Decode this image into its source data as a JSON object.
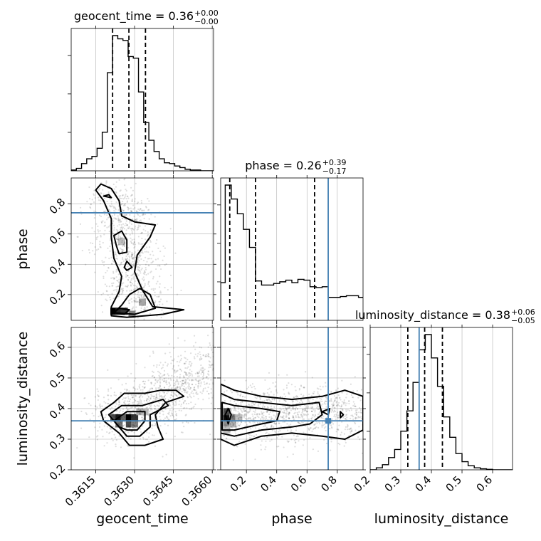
{
  "chart_data": {
    "type": "corner",
    "parameters": [
      "geocent_time",
      "phase",
      "luminosity_distance"
    ],
    "truths": {
      "geocent_time": null,
      "phase": 0.74,
      "luminosity_distance": 0.36
    },
    "truth_color": "#4682b4",
    "grid": true,
    "x_ticks": {
      "geocent_time": {
        "values": [
          0.3615,
          0.363,
          0.3645,
          0.366
        ],
        "labels": [
          "0.3615",
          "0.3630",
          "0.3645",
          "0.3660"
        ]
      },
      "phase": {
        "values": [
          0.2,
          0.4,
          0.6,
          0.8
        ],
        "labels": [
          "0.2",
          "0.4",
          "0.6",
          "0.8"
        ]
      },
      "luminosity_distance": {
        "values": [
          0.2,
          0.3,
          0.4,
          0.5,
          0.6
        ],
        "labels": [
          "0.2",
          "0.3",
          "0.4",
          "0.5",
          "0.6"
        ]
      }
    },
    "y_ticks": {
      "phase": {
        "values": [
          0.2,
          0.4,
          0.6,
          0.8
        ],
        "labels": [
          "0.2",
          "0.4",
          "0.6",
          "0.8"
        ]
      },
      "luminosity_distance": {
        "values": [
          0.2,
          0.3,
          0.4,
          0.5,
          0.6
        ],
        "labels": [
          "0.2",
          "0.3",
          "0.4",
          "0.5",
          "0.6"
        ]
      }
    },
    "ranges": {
      "geocent_time": [
        0.36055,
        0.36605
      ],
      "phase": [
        0.03,
        0.97
      ],
      "luminosity_distance": [
        0.2,
        0.665
      ]
    },
    "titles": [
      {
        "param": "geocent_time",
        "label": "geocent_time = 0.36",
        "sup": "+0.00",
        "sub": "−0.00"
      },
      {
        "param": "phase",
        "label": "phase = 0.26",
        "sup": "+0.39",
        "sub": "−0.17"
      },
      {
        "param": "luminosity_distance",
        "label": "luminosity_distance = 0.38",
        "sup": "+0.06",
        "sub": "−0.05"
      }
    ],
    "quantiles": {
      "geocent_time": [
        0.36215,
        0.36278,
        0.36342
      ],
      "phase": [
        0.09,
        0.26,
        0.65
      ],
      "luminosity_distance": [
        0.323,
        0.378,
        0.436
      ]
    },
    "histograms": {
      "geocent_time": {
        "bin_edges": [
          0.36055,
          0.36075,
          0.36095,
          0.36115,
          0.36135,
          0.36155,
          0.36175,
          0.36195,
          0.36215,
          0.36235,
          0.36255,
          0.36275,
          0.36295,
          0.36315,
          0.36335,
          0.36355,
          0.36375,
          0.36395,
          0.36415,
          0.36435,
          0.36455,
          0.36475,
          0.36495,
          0.36515,
          0.36535,
          0.36555,
          0.36575,
          0.36605
        ],
        "counts": [
          1,
          3,
          9,
          15,
          18,
          28,
          48,
          122,
          168,
          164,
          162,
          142,
          140,
          98,
          60,
          38,
          24,
          15,
          10,
          9,
          6,
          4,
          2,
          1,
          1,
          0,
          0
        ]
      },
      "phase": {
        "bin_edges": [
          0.03,
          0.06,
          0.1,
          0.14,
          0.18,
          0.22,
          0.26,
          0.3,
          0.34,
          0.38,
          0.42,
          0.46,
          0.5,
          0.54,
          0.58,
          0.62,
          0.66,
          0.7,
          0.74,
          0.78,
          0.82,
          0.86,
          0.9,
          0.94,
          0.97
        ],
        "counts": [
          46,
          165,
          148,
          130,
          111,
          89,
          48,
          43,
          43,
          45,
          47,
          49,
          46,
          50,
          49,
          41,
          40,
          41,
          28,
          28,
          29,
          30,
          30,
          28
        ]
      },
      "luminosity_distance": {
        "bin_edges": [
          0.2,
          0.22,
          0.24,
          0.26,
          0.28,
          0.3,
          0.32,
          0.34,
          0.36,
          0.38,
          0.4,
          0.42,
          0.44,
          0.46,
          0.48,
          0.5,
          0.52,
          0.54,
          0.56,
          0.58,
          0.6,
          0.62,
          0.64,
          0.665
        ],
        "counts": [
          0,
          2,
          5,
          12,
          20,
          38,
          58,
          86,
          118,
          133,
          110,
          82,
          52,
          32,
          16,
          8,
          4,
          2,
          1,
          0.5,
          0,
          0,
          0
        ]
      }
    },
    "scatter": [
      {
        "x": "geocent_time",
        "y": "phase",
        "n_points": 900,
        "spine": [
          [
            0.362,
            0.9
          ],
          [
            0.3624,
            0.8
          ],
          [
            0.3627,
            0.7
          ],
          [
            0.3626,
            0.6
          ],
          [
            0.3628,
            0.5
          ],
          [
            0.3627,
            0.4
          ],
          [
            0.3629,
            0.3
          ],
          [
            0.3631,
            0.2
          ],
          [
            0.3633,
            0.1
          ]
        ],
        "spread": [
          0.0006,
          0.05
        ],
        "density_cells": [
          {
            "x": 0.3622,
            "y": 0.09,
            "level": 1.0
          },
          {
            "x": 0.3624,
            "y": 0.09,
            "level": 0.85
          },
          {
            "x": 0.3626,
            "y": 0.09,
            "level": 0.8
          },
          {
            "x": 0.3629,
            "y": 0.07,
            "level": 0.5
          },
          {
            "x": 0.3633,
            "y": 0.15,
            "level": 0.35
          },
          {
            "x": 0.3625,
            "y": 0.55,
            "level": 0.25
          }
        ],
        "contours": [
          {
            "points": [
              [
                0.3617,
                0.93
              ],
              [
                0.3621,
                0.9
              ],
              [
                0.3624,
                0.82
              ],
              [
                0.3625,
                0.72
              ],
              [
                0.363,
                0.68
              ],
              [
                0.3638,
                0.66
              ],
              [
                0.3636,
                0.58
              ],
              [
                0.3631,
                0.46
              ],
              [
                0.363,
                0.35
              ],
              [
                0.3633,
                0.23
              ],
              [
                0.3637,
                0.12
              ],
              [
                0.3649,
                0.1
              ],
              [
                0.3641,
                0.07
              ],
              [
                0.3627,
                0.05
              ],
              [
                0.3621,
                0.06
              ],
              [
                0.3621,
                0.12
              ],
              [
                0.3624,
                0.22
              ],
              [
                0.3625,
                0.32
              ],
              [
                0.3622,
                0.44
              ],
              [
                0.3621,
                0.58
              ],
              [
                0.3621,
                0.7
              ],
              [
                0.3618,
                0.82
              ],
              [
                0.3615,
                0.89
              ]
            ]
          },
          {
            "points": [
              [
                0.3622,
                0.59
              ],
              [
                0.3625,
                0.62
              ],
              [
                0.3627,
                0.56
              ],
              [
                0.3627,
                0.48
              ],
              [
                0.3624,
                0.47
              ],
              [
                0.3623,
                0.52
              ]
            ]
          },
          {
            "points": [
              [
                0.3622,
                0.08
              ],
              [
                0.363,
                0.07
              ],
              [
                0.3638,
                0.11
              ],
              [
                0.3636,
                0.2
              ],
              [
                0.3632,
                0.24
              ],
              [
                0.3628,
                0.2
              ],
              [
                0.3625,
                0.13
              ]
            ]
          },
          {
            "points": [
              [
                0.3622,
                0.08
              ],
              [
                0.3626,
                0.07
              ],
              [
                0.3628,
                0.1
              ],
              [
                0.3624,
                0.11
              ]
            ]
          },
          {
            "points": [
              [
                0.3618,
                0.85
              ],
              [
                0.3621,
                0.84
              ],
              [
                0.362,
                0.86
              ]
            ]
          },
          {
            "points": [
              [
                0.3627,
                0.36
              ],
              [
                0.3629,
                0.38
              ],
              [
                0.3627,
                0.42
              ],
              [
                0.3626,
                0.38
              ]
            ]
          }
        ]
      },
      {
        "x": "geocent_time",
        "y": "luminosity_distance",
        "n_points": 1100,
        "spine": [
          [
            0.3617,
            0.36
          ],
          [
            0.3625,
            0.37
          ],
          [
            0.363,
            0.38
          ],
          [
            0.3635,
            0.41
          ],
          [
            0.364,
            0.44
          ],
          [
            0.3645,
            0.47
          ],
          [
            0.365,
            0.49
          ],
          [
            0.3655,
            0.52
          ],
          [
            0.3659,
            0.55
          ]
        ],
        "spread": [
          0.0007,
          0.045
        ],
        "density_cells": [
          {
            "x": 0.3622,
            "y": 0.37,
            "level": 0.7
          },
          {
            "x": 0.3624,
            "y": 0.37,
            "level": 0.9
          },
          {
            "x": 0.3626,
            "y": 0.37,
            "level": 0.6
          },
          {
            "x": 0.3628,
            "y": 0.37,
            "level": 1.0
          },
          {
            "x": 0.363,
            "y": 0.37,
            "level": 0.8
          },
          {
            "x": 0.3624,
            "y": 0.35,
            "level": 0.55
          },
          {
            "x": 0.3628,
            "y": 0.35,
            "level": 0.7
          },
          {
            "x": 0.363,
            "y": 0.35,
            "level": 0.5
          },
          {
            "x": 0.3632,
            "y": 0.39,
            "level": 0.3
          },
          {
            "x": 0.3634,
            "y": 0.39,
            "level": 0.25
          }
        ],
        "contours": [
          {
            "points": [
              [
                0.3617,
                0.39
              ],
              [
                0.3622,
                0.42
              ],
              [
                0.3626,
                0.45
              ],
              [
                0.3634,
                0.45
              ],
              [
                0.364,
                0.46
              ],
              [
                0.3646,
                0.46
              ],
              [
                0.3649,
                0.44
              ],
              [
                0.3642,
                0.42
              ],
              [
                0.3638,
                0.38
              ],
              [
                0.3639,
                0.34
              ],
              [
                0.3641,
                0.3
              ],
              [
                0.3634,
                0.28
              ],
              [
                0.3628,
                0.28
              ],
              [
                0.3624,
                0.32
              ],
              [
                0.3618,
                0.36
              ]
            ]
          },
          {
            "points": [
              [
                0.362,
                0.38
              ],
              [
                0.3625,
                0.41
              ],
              [
                0.3633,
                0.41
              ],
              [
                0.3641,
                0.43
              ],
              [
                0.3643,
                0.41
              ],
              [
                0.3636,
                0.38
              ],
              [
                0.3636,
                0.34
              ],
              [
                0.3632,
                0.31
              ],
              [
                0.3627,
                0.31
              ],
              [
                0.3624,
                0.34
              ]
            ]
          },
          {
            "points": [
              [
                0.3622,
                0.36
              ],
              [
                0.3627,
                0.39
              ],
              [
                0.3634,
                0.39
              ],
              [
                0.3634,
                0.36
              ],
              [
                0.3631,
                0.33
              ],
              [
                0.3627,
                0.33
              ],
              [
                0.3624,
                0.34
              ]
            ]
          }
        ]
      },
      {
        "x": "phase",
        "y": "luminosity_distance",
        "n_points": 1200,
        "spine": [
          [
            0.05,
            0.38
          ],
          [
            0.2,
            0.38
          ],
          [
            0.4,
            0.39
          ],
          [
            0.6,
            0.39
          ],
          [
            0.8,
            0.38
          ],
          [
            0.95,
            0.38
          ]
        ],
        "spread": [
          0.12,
          0.045
        ],
        "density_cells": [
          {
            "x": 0.07,
            "y": 0.37,
            "level": 0.95
          },
          {
            "x": 0.07,
            "y": 0.39,
            "level": 0.7
          },
          {
            "x": 0.11,
            "y": 0.37,
            "level": 0.45
          },
          {
            "x": 0.07,
            "y": 0.35,
            "level": 0.45
          },
          {
            "x": 0.15,
            "y": 0.37,
            "level": 0.25
          },
          {
            "x": 0.11,
            "y": 0.35,
            "level": 0.3
          },
          {
            "x": 0.07,
            "y": 0.33,
            "level": 0.25
          }
        ],
        "contours": [
          {
            "points": [
              [
                0.03,
                0.48
              ],
              [
                0.12,
                0.46
              ],
              [
                0.3,
                0.44
              ],
              [
                0.5,
                0.43
              ],
              [
                0.7,
                0.44
              ],
              [
                0.85,
                0.46
              ],
              [
                0.97,
                0.44
              ],
              [
                0.97,
                0.33
              ],
              [
                0.85,
                0.3
              ],
              [
                0.7,
                0.31
              ],
              [
                0.5,
                0.32
              ],
              [
                0.3,
                0.31
              ],
              [
                0.12,
                0.28
              ],
              [
                0.03,
                0.3
              ]
            ]
          },
          {
            "points": [
              [
                0.03,
                0.45
              ],
              [
                0.12,
                0.43
              ],
              [
                0.3,
                0.42
              ],
              [
                0.5,
                0.41
              ],
              [
                0.68,
                0.42
              ],
              [
                0.7,
                0.38
              ],
              [
                0.62,
                0.35
              ],
              [
                0.5,
                0.34
              ],
              [
                0.3,
                0.33
              ],
              [
                0.12,
                0.31
              ],
              [
                0.03,
                0.32
              ]
            ]
          },
          {
            "points": [
              [
                0.04,
                0.42
              ],
              [
                0.12,
                0.41
              ],
              [
                0.3,
                0.4
              ],
              [
                0.42,
                0.39
              ],
              [
                0.4,
                0.36
              ],
              [
                0.3,
                0.35
              ],
              [
                0.12,
                0.33
              ],
              [
                0.04,
                0.33
              ]
            ]
          },
          {
            "points": [
              [
                0.06,
                0.38
              ],
              [
                0.08,
                0.4
              ],
              [
                0.1,
                0.38
              ],
              [
                0.08,
                0.35
              ]
            ]
          },
          {
            "points": [
              [
                0.7,
                0.39
              ],
              [
                0.75,
                0.4
              ],
              [
                0.74,
                0.38
              ]
            ]
          },
          {
            "points": [
              [
                0.82,
                0.37
              ],
              [
                0.84,
                0.38
              ],
              [
                0.82,
                0.39
              ]
            ]
          }
        ]
      }
    ]
  }
}
